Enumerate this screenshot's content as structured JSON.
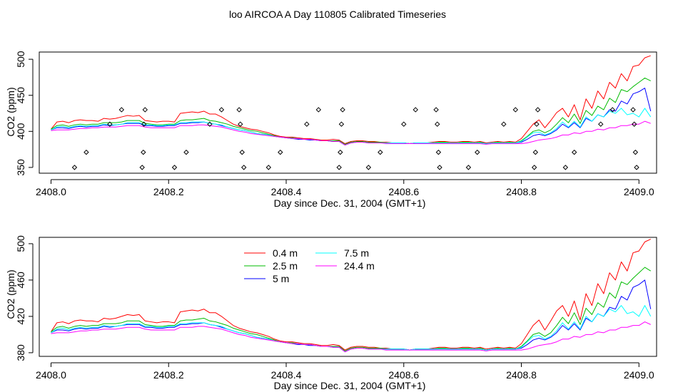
{
  "title": "loo AIRCOA A  Day 110805  Calibrated Timeseries",
  "colors": {
    "0.4 m": "#ff0000",
    "2.5 m": "#00bb00",
    "5 m": "#0000ff",
    "7.5 m": "#00ffff",
    "24.4 m": "#ff00ff",
    "axis": "#000000"
  },
  "chart_data": [
    {
      "type": "line",
      "title": "",
      "xlabel": "Day since Dec. 31, 2004 (GMT+1)",
      "ylabel": "CO2 (ppm)",
      "xlim": [
        2407.98,
        2409.03
      ],
      "ylim": [
        342,
        510
      ],
      "xticks": [
        2408.0,
        2408.2,
        2408.4,
        2408.6,
        2408.8,
        2409.0
      ],
      "xtick_labels": [
        "2408.0",
        "2408.2",
        "2408.4",
        "2408.6",
        "2408.8",
        "2409.0"
      ],
      "yticks": [
        350,
        400,
        450,
        500
      ],
      "ytick_labels": [
        "350",
        "400",
        "450",
        "500"
      ],
      "legend": "none",
      "grid": false,
      "x_start": 2408.0,
      "x_step": 0.01,
      "series": [
        {
          "name": "0.4 m",
          "values": [
            403,
            413,
            414,
            412,
            415,
            416,
            415,
            415,
            414,
            418,
            417,
            418,
            420,
            422,
            421,
            422,
            415,
            414,
            413,
            414,
            414,
            413,
            425,
            426,
            427,
            426,
            428,
            424,
            424,
            420,
            415,
            410,
            407,
            405,
            403,
            402,
            400,
            398,
            395,
            393,
            392,
            392,
            391,
            390,
            390,
            389,
            388,
            388,
            389,
            388,
            383,
            386,
            387,
            387,
            386,
            386,
            385,
            385,
            384,
            384,
            384,
            383,
            384,
            384,
            384,
            385,
            386,
            386,
            385,
            385,
            386,
            386,
            385,
            386,
            384,
            385,
            386,
            385,
            386,
            385,
            390,
            400,
            410,
            416,
            405,
            415,
            426,
            432,
            420,
            437,
            416,
            445,
            432,
            456,
            445,
            468,
            460,
            480,
            470,
            490,
            492,
            502,
            505
          ]
        },
        {
          "name": "2.5 m",
          "values": [
            403,
            408,
            409,
            407,
            409,
            410,
            409,
            410,
            410,
            412,
            412,
            412,
            413,
            415,
            415,
            415,
            411,
            410,
            409,
            409,
            410,
            410,
            415,
            416,
            416,
            417,
            418,
            415,
            414,
            412,
            410,
            407,
            405,
            403,
            401,
            400,
            398,
            396,
            394,
            392,
            391,
            391,
            390,
            389,
            389,
            388,
            387,
            387,
            387,
            387,
            382,
            385,
            386,
            386,
            385,
            385,
            385,
            384,
            384,
            384,
            384,
            383,
            384,
            384,
            384,
            384,
            385,
            385,
            384,
            384,
            385,
            385,
            384,
            385,
            383,
            384,
            385,
            384,
            385,
            384,
            387,
            393,
            400,
            402,
            398,
            402,
            410,
            419,
            412,
            424,
            411,
            429,
            422,
            435,
            430,
            446,
            440,
            458,
            455,
            462,
            468,
            474,
            470
          ]
        },
        {
          "name": "5 m",
          "values": [
            402,
            405,
            405,
            404,
            406,
            407,
            406,
            407,
            407,
            409,
            408,
            409,
            410,
            411,
            411,
            411,
            408,
            408,
            407,
            407,
            408,
            408,
            411,
            411,
            412,
            412,
            413,
            411,
            410,
            408,
            406,
            404,
            402,
            401,
            399,
            397,
            396,
            395,
            393,
            392,
            391,
            390,
            389,
            389,
            388,
            388,
            387,
            387,
            386,
            386,
            381,
            384,
            385,
            385,
            384,
            384,
            384,
            384,
            384,
            384,
            384,
            383,
            384,
            384,
            384,
            384,
            384,
            384,
            384,
            384,
            384,
            384,
            384,
            384,
            383,
            384,
            384,
            384,
            384,
            384,
            385,
            389,
            394,
            396,
            394,
            397,
            402,
            410,
            405,
            412,
            405,
            418,
            414,
            423,
            420,
            430,
            428,
            442,
            438,
            452,
            455,
            460,
            428
          ]
        },
        {
          "name": "7.5 m",
          "values": [
            402,
            406,
            407,
            405,
            407,
            408,
            407,
            408,
            408,
            410,
            409,
            409,
            410,
            412,
            412,
            412,
            409,
            409,
            408,
            408,
            409,
            409,
            412,
            412,
            413,
            413,
            413,
            411,
            410,
            409,
            406,
            404,
            402,
            401,
            399,
            397,
            396,
            395,
            393,
            392,
            391,
            390,
            390,
            389,
            389,
            388,
            387,
            387,
            386,
            386,
            381,
            384,
            385,
            385,
            384,
            384,
            384,
            384,
            384,
            384,
            384,
            383,
            384,
            384,
            384,
            384,
            384,
            384,
            384,
            384,
            384,
            384,
            384,
            384,
            383,
            384,
            384,
            384,
            384,
            384,
            386,
            392,
            398,
            399,
            395,
            398,
            404,
            413,
            406,
            414,
            406,
            420,
            414,
            423,
            420,
            428,
            425,
            432,
            423,
            425,
            420,
            432,
            420
          ]
        },
        {
          "name": "24.4 m",
          "values": [
            401,
            402,
            402,
            402,
            403,
            404,
            404,
            405,
            405,
            406,
            406,
            406,
            407,
            408,
            408,
            408,
            406,
            405,
            405,
            405,
            405,
            405,
            408,
            408,
            408,
            409,
            409,
            408,
            407,
            406,
            404,
            402,
            400,
            399,
            397,
            396,
            395,
            394,
            393,
            392,
            391,
            390,
            390,
            389,
            389,
            388,
            387,
            387,
            386,
            386,
            381,
            384,
            385,
            385,
            384,
            384,
            384,
            383,
            383,
            383,
            383,
            383,
            383,
            383,
            383,
            383,
            383,
            383,
            383,
            383,
            383,
            383,
            383,
            383,
            382,
            383,
            383,
            383,
            383,
            383,
            383,
            384,
            386,
            388,
            389,
            390,
            392,
            395,
            395,
            398,
            397,
            400,
            400,
            403,
            402,
            405,
            405,
            408,
            408,
            410,
            410,
            414,
            411
          ]
        }
      ],
      "markers": {
        "style": "open-diamond",
        "points": [
          [
            2408.04,
            350
          ],
          [
            2408.06,
            371
          ],
          [
            2408.1,
            410
          ],
          [
            2408.12,
            430
          ],
          [
            2408.155,
            350
          ],
          [
            2408.157,
            371
          ],
          [
            2408.158,
            410
          ],
          [
            2408.16,
            430
          ],
          [
            2408.21,
            350
          ],
          [
            2408.23,
            371
          ],
          [
            2408.27,
            410
          ],
          [
            2408.29,
            430
          ],
          [
            2408.32,
            430
          ],
          [
            2408.322,
            410
          ],
          [
            2408.325,
            371
          ],
          [
            2408.328,
            350
          ],
          [
            2408.37,
            350
          ],
          [
            2408.39,
            371
          ],
          [
            2408.435,
            410
          ],
          [
            2408.455,
            430
          ],
          [
            2408.49,
            350
          ],
          [
            2408.492,
            371
          ],
          [
            2408.494,
            410
          ],
          [
            2408.496,
            430
          ],
          [
            2408.54,
            350
          ],
          [
            2408.56,
            371
          ],
          [
            2408.6,
            410
          ],
          [
            2408.62,
            430
          ],
          [
            2408.655,
            430
          ],
          [
            2408.657,
            410
          ],
          [
            2408.659,
            371
          ],
          [
            2408.661,
            350
          ],
          [
            2408.71,
            350
          ],
          [
            2408.725,
            371
          ],
          [
            2408.77,
            410
          ],
          [
            2408.79,
            430
          ],
          [
            2408.822,
            350
          ],
          [
            2408.824,
            371
          ],
          [
            2408.826,
            410
          ],
          [
            2408.828,
            430
          ],
          [
            2408.875,
            350
          ],
          [
            2408.89,
            371
          ],
          [
            2408.935,
            410
          ],
          [
            2408.955,
            430
          ],
          [
            2408.99,
            430
          ],
          [
            2408.992,
            410
          ],
          [
            2408.994,
            371
          ],
          [
            2408.996,
            350
          ]
        ]
      }
    },
    {
      "type": "line",
      "title": "",
      "xlabel": "Day since Dec. 31, 2004 (GMT+1)",
      "ylabel": "CO2 (ppm)",
      "xlim": [
        2407.98,
        2409.03
      ],
      "ylim": [
        376,
        507
      ],
      "xticks": [
        2408.0,
        2408.2,
        2408.4,
        2408.6,
        2408.8,
        2409.0
      ],
      "xtick_labels": [
        "2408.0",
        "2408.2",
        "2408.4",
        "2408.6",
        "2408.8",
        "2409.0"
      ],
      "yticks": [
        380,
        420,
        460,
        500
      ],
      "ytick_labels": [
        "380",
        "420",
        "460",
        "500"
      ],
      "legend": "top-left, two columns, no border",
      "grid": false,
      "series_ref": "same series as chart 1"
    }
  ]
}
